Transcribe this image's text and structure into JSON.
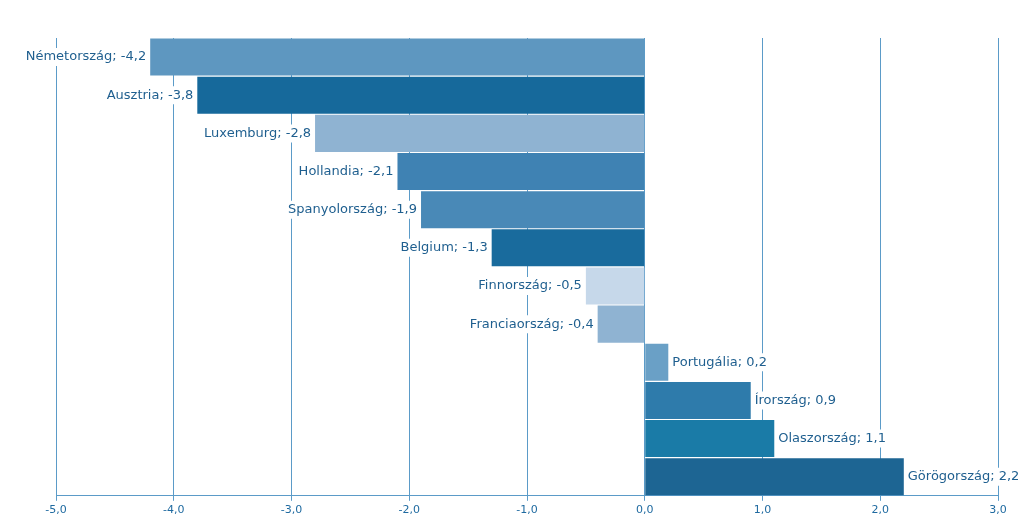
{
  "chart_data": {
    "type": "bar",
    "orientation": "horizontal",
    "categories": [
      null,
      null,
      null,
      null,
      null,
      null,
      null,
      null,
      null,
      null,
      null,
      null
    ],
    "values": [
      -4.2,
      -3.8,
      -2.8,
      -2.1,
      -1.9,
      -1.3,
      -0.5,
      -0.4,
      0.2,
      0.9,
      1.1,
      2.2
    ],
    "colors": [
      "#5e97c0",
      "#16699b",
      "#8fb3d2",
      "#3f82b3",
      "#4989b7",
      "#196b9d",
      "#c6d8ea",
      "#8fb3d2",
      "#6aa0c6",
      "#2e7bab",
      "#1a7ba7",
      "#1d6593"
    ],
    "value_labels": [
      "Németország; -4,2",
      "Ausztria; -3,8",
      "Luxemburg; -2,8",
      "Hollandia; -2,1",
      "Spanyolország; -1,9",
      "Belgium; -1,3",
      "Finnország; -0,5",
      "Franciaország; -0,4",
      "Portugália; 0,2",
      "Írország; 0,9",
      "Olaszország; 1,1",
      "Görögország; 2,2"
    ],
    "xlim": [
      -5,
      3
    ],
    "xticks": [
      {
        "value": -5,
        "label": "-5,0"
      },
      {
        "value": -4,
        "label": "-4,0"
      },
      {
        "value": -3,
        "label": "-3,0"
      },
      {
        "value": -2,
        "label": "-2,0"
      },
      {
        "value": -1,
        "label": "-1,0"
      },
      {
        "value": 0,
        "label": "0,0"
      },
      {
        "value": 1,
        "label": "1,0"
      },
      {
        "value": 2,
        "label": "2,0"
      },
      {
        "value": 3,
        "label": "3,0"
      }
    ],
    "grid": "x",
    "tick_labels": "x",
    "legend": false
  }
}
